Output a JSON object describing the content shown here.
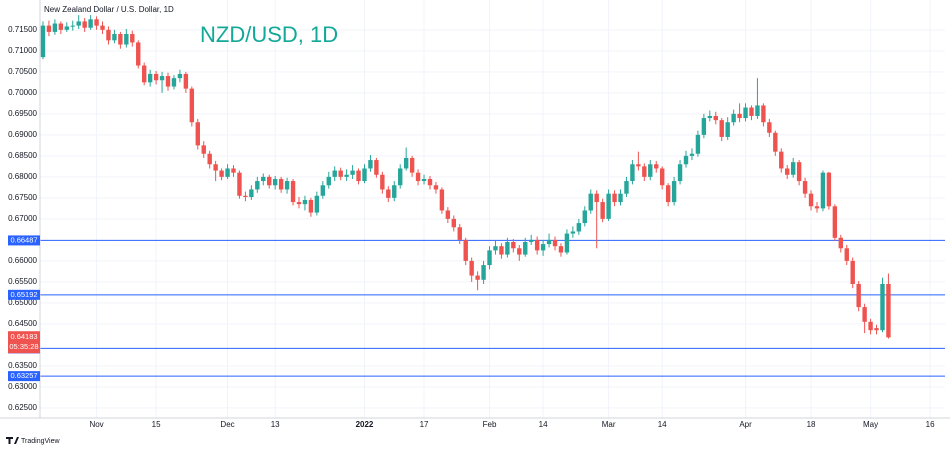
{
  "chart_data": {
    "type": "candlestick",
    "title": "New Zealand Dollar / U.S. Dollar, 1D",
    "annotation": "NZD/USD, 1D",
    "open": [
      0.7085,
      0.716,
      0.7145,
      0.7165,
      0.715,
      0.7158,
      0.716,
      0.717,
      0.7155,
      0.7175,
      0.716,
      0.715,
      0.7125,
      0.714,
      0.7115,
      0.714,
      0.712,
      0.7065,
      0.7025,
      0.7045,
      0.703,
      0.704,
      0.7015,
      0.7035,
      0.7045,
      0.701,
      0.693,
      0.6875,
      0.6855,
      0.683,
      0.6815,
      0.68,
      0.682,
      0.681,
      0.6755,
      0.6752,
      0.677,
      0.679,
      0.68,
      0.678,
      0.6795,
      0.677,
      0.679,
      0.674,
      0.6735,
      0.6745,
      0.6715,
      0.6755,
      0.678,
      0.68,
      0.6815,
      0.68,
      0.6805,
      0.6815,
      0.679,
      0.682,
      0.684,
      0.6805,
      0.677,
      0.675,
      0.678,
      0.682,
      0.6845,
      0.681,
      0.679,
      0.6795,
      0.678,
      0.677,
      0.672,
      0.67,
      0.668,
      0.665,
      0.66,
      0.6565,
      0.6555,
      0.659,
      0.6625,
      0.6635,
      0.6615,
      0.6645,
      0.663,
      0.6615,
      0.6645,
      0.665,
      0.6625,
      0.664,
      0.665,
      0.6635,
      0.662,
      0.6665,
      0.667,
      0.669,
      0.672,
      0.676,
      0.674,
      0.67,
      0.676,
      0.674,
      0.676,
      0.679,
      0.683,
      0.6825,
      0.68,
      0.683,
      0.682,
      0.678,
      0.674,
      0.679,
      0.683,
      0.685,
      0.6855,
      0.69,
      0.694,
      0.6945,
      0.6935,
      0.6895,
      0.693,
      0.695,
      0.694,
      0.6965,
      0.6945,
      0.697,
      0.693,
      0.6905,
      0.686,
      0.682,
      0.6805,
      0.6835,
      0.679,
      0.676,
      0.673,
      0.6725,
      0.681,
      0.673,
      0.6655,
      0.663,
      0.66,
      0.6545,
      0.649,
      0.6455,
      0.644,
      0.6435,
      0.6545
    ],
    "high": [
      0.717,
      0.7172,
      0.7175,
      0.717,
      0.7168,
      0.7172,
      0.7185,
      0.7178,
      0.7185,
      0.7182,
      0.717,
      0.7158,
      0.715,
      0.7145,
      0.7152,
      0.7148,
      0.7125,
      0.7072,
      0.7055,
      0.7052,
      0.705,
      0.7048,
      0.7042,
      0.7055,
      0.705,
      0.7015,
      0.6938,
      0.6885,
      0.6862,
      0.6838,
      0.682,
      0.683,
      0.6828,
      0.6815,
      0.6765,
      0.678,
      0.68,
      0.6808,
      0.6805,
      0.6802,
      0.68,
      0.6798,
      0.6795,
      0.6752,
      0.6755,
      0.675,
      0.6765,
      0.679,
      0.6812,
      0.6825,
      0.6822,
      0.6818,
      0.6828,
      0.682,
      0.683,
      0.6852,
      0.6845,
      0.6812,
      0.6778,
      0.679,
      0.683,
      0.687,
      0.685,
      0.6818,
      0.6805,
      0.6802,
      0.6788,
      0.6775,
      0.6728,
      0.6708,
      0.6688,
      0.6655,
      0.6608,
      0.6575,
      0.66,
      0.6635,
      0.6648,
      0.6642,
      0.6655,
      0.6652,
      0.6638,
      0.6655,
      0.6662,
      0.6658,
      0.665,
      0.6665,
      0.6658,
      0.6642,
      0.6675,
      0.6682,
      0.67,
      0.673,
      0.677,
      0.6768,
      0.6748,
      0.677,
      0.6768,
      0.677,
      0.68,
      0.684,
      0.686,
      0.6832,
      0.684,
      0.6838,
      0.6825,
      0.6785,
      0.68,
      0.684,
      0.6862,
      0.6868,
      0.691,
      0.695,
      0.6958,
      0.6955,
      0.694,
      0.6942,
      0.696,
      0.6975,
      0.6975,
      0.697,
      0.7035,
      0.6975,
      0.6938,
      0.691,
      0.6868,
      0.6828,
      0.6845,
      0.684,
      0.6798,
      0.6768,
      0.674,
      0.6815,
      0.6812,
      0.6735,
      0.6662,
      0.6638,
      0.6608,
      0.6552,
      0.6498,
      0.6462,
      0.6448,
      0.656,
      0.657
    ],
    "low": [
      0.708,
      0.7135,
      0.7138,
      0.714,
      0.7145,
      0.7148,
      0.7152,
      0.7145,
      0.715,
      0.715,
      0.714,
      0.7115,
      0.7118,
      0.7105,
      0.7108,
      0.711,
      0.7058,
      0.7018,
      0.7015,
      0.702,
      0.7,
      0.7005,
      0.7008,
      0.7025,
      0.7,
      0.692,
      0.6865,
      0.6845,
      0.682,
      0.679,
      0.6792,
      0.6795,
      0.68,
      0.6748,
      0.6742,
      0.6745,
      0.6762,
      0.678,
      0.6772,
      0.677,
      0.6762,
      0.676,
      0.6732,
      0.6725,
      0.672,
      0.6705,
      0.6708,
      0.6748,
      0.6772,
      0.679,
      0.6792,
      0.679,
      0.6795,
      0.6782,
      0.6785,
      0.6812,
      0.6798,
      0.676,
      0.674,
      0.6742,
      0.6772,
      0.6815,
      0.68,
      0.678,
      0.6782,
      0.677,
      0.676,
      0.6712,
      0.669,
      0.667,
      0.664,
      0.659,
      0.655,
      0.653,
      0.6545,
      0.658,
      0.6615,
      0.6605,
      0.6608,
      0.662,
      0.66,
      0.661,
      0.6638,
      0.6615,
      0.6612,
      0.6632,
      0.6625,
      0.661,
      0.6615,
      0.6655,
      0.6662,
      0.6682,
      0.6712,
      0.663,
      0.6692,
      0.6695,
      0.673,
      0.6732,
      0.6752,
      0.6782,
      0.6815,
      0.679,
      0.6792,
      0.681,
      0.677,
      0.673,
      0.6732,
      0.6782,
      0.6822,
      0.684,
      0.6848,
      0.6892,
      0.6932,
      0.6925,
      0.6885,
      0.6888,
      0.6922,
      0.693,
      0.6932,
      0.6935,
      0.6938,
      0.692,
      0.6895,
      0.685,
      0.681,
      0.6795,
      0.6798,
      0.678,
      0.675,
      0.672,
      0.6715,
      0.6718,
      0.6722,
      0.6648,
      0.662,
      0.659,
      0.6535,
      0.648,
      0.6428,
      0.6425,
      0.6425,
      0.643,
      0.6415
    ],
    "close": [
      0.716,
      0.7145,
      0.7165,
      0.715,
      0.7158,
      0.716,
      0.717,
      0.7155,
      0.7175,
      0.716,
      0.715,
      0.7125,
      0.714,
      0.7115,
      0.714,
      0.712,
      0.7065,
      0.7025,
      0.7045,
      0.703,
      0.704,
      0.7015,
      0.7035,
      0.7045,
      0.701,
      0.693,
      0.6875,
      0.6855,
      0.683,
      0.6815,
      0.68,
      0.682,
      0.681,
      0.6755,
      0.6752,
      0.677,
      0.679,
      0.68,
      0.678,
      0.6795,
      0.677,
      0.679,
      0.674,
      0.6735,
      0.6745,
      0.6715,
      0.6755,
      0.678,
      0.68,
      0.6815,
      0.68,
      0.6805,
      0.6815,
      0.679,
      0.682,
      0.684,
      0.6805,
      0.677,
      0.675,
      0.678,
      0.682,
      0.6845,
      0.681,
      0.679,
      0.6795,
      0.678,
      0.677,
      0.672,
      0.67,
      0.668,
      0.665,
      0.66,
      0.6565,
      0.6555,
      0.659,
      0.6625,
      0.6635,
      0.6615,
      0.6645,
      0.663,
      0.6615,
      0.6645,
      0.665,
      0.6625,
      0.664,
      0.665,
      0.6635,
      0.662,
      0.6665,
      0.667,
      0.669,
      0.672,
      0.676,
      0.674,
      0.67,
      0.676,
      0.674,
      0.676,
      0.679,
      0.683,
      0.6825,
      0.68,
      0.683,
      0.682,
      0.678,
      0.674,
      0.679,
      0.683,
      0.685,
      0.6855,
      0.69,
      0.694,
      0.6945,
      0.6935,
      0.6895,
      0.693,
      0.695,
      0.694,
      0.6965,
      0.6945,
      0.697,
      0.693,
      0.6905,
      0.686,
      0.682,
      0.6805,
      0.6835,
      0.679,
      0.676,
      0.673,
      0.6725,
      0.681,
      0.673,
      0.6655,
      0.663,
      0.66,
      0.6545,
      0.649,
      0.6455,
      0.6435,
      0.6435,
      0.6545,
      0.6418
    ],
    "up_color": "#26a69a",
    "down_color": "#ef5350",
    "xlim": [
      -0.5,
      151.5
    ],
    "xticks": [
      {
        "value": 9,
        "label": "Nov"
      },
      {
        "value": 19,
        "label": "15"
      },
      {
        "value": 31,
        "label": "Dec"
      },
      {
        "value": 39,
        "label": "13"
      },
      {
        "value": 54,
        "label": "2022"
      },
      {
        "value": 64,
        "label": "17"
      },
      {
        "value": 75,
        "label": "Feb"
      },
      {
        "value": 84,
        "label": "14"
      },
      {
        "value": 95,
        "label": "Mar"
      },
      {
        "value": 104,
        "label": "14"
      },
      {
        "value": 118,
        "label": "Apr"
      },
      {
        "value": 129,
        "label": "18"
      },
      {
        "value": 139,
        "label": "May"
      },
      {
        "value": 149,
        "label": "16"
      }
    ],
    "ylim": [
      0.6226,
      0.7221
    ],
    "yticks": [
      {
        "value": 0.625,
        "label": "0.62500"
      },
      {
        "value": 0.63,
        "label": "0.63000"
      },
      {
        "value": 0.635,
        "label": "0.63500"
      },
      {
        "value": 0.645,
        "label": "0.64500"
      },
      {
        "value": 0.65,
        "label": "0.65000"
      },
      {
        "value": 0.655,
        "label": "0.65500"
      },
      {
        "value": 0.66,
        "label": "0.66000"
      },
      {
        "value": 0.67,
        "label": "0.67000"
      },
      {
        "value": 0.675,
        "label": "0.67500"
      },
      {
        "value": 0.68,
        "label": "0.68000"
      },
      {
        "value": 0.685,
        "label": "0.68500"
      },
      {
        "value": 0.69,
        "label": "0.69000"
      },
      {
        "value": 0.695,
        "label": "0.69500"
      },
      {
        "value": 0.7,
        "label": "0.70000"
      },
      {
        "value": 0.705,
        "label": "0.70500"
      },
      {
        "value": 0.71,
        "label": "0.71000"
      },
      {
        "value": 0.715,
        "label": "0.71500"
      }
    ],
    "grid": true,
    "levels": {
      "color": "#2962ff",
      "values": [
        0.66487,
        0.65192,
        0.63917,
        0.63257
      ]
    },
    "last_price": 0.64183,
    "countdown": "05:35:28"
  },
  "footer": {
    "brand": "TradingView"
  }
}
